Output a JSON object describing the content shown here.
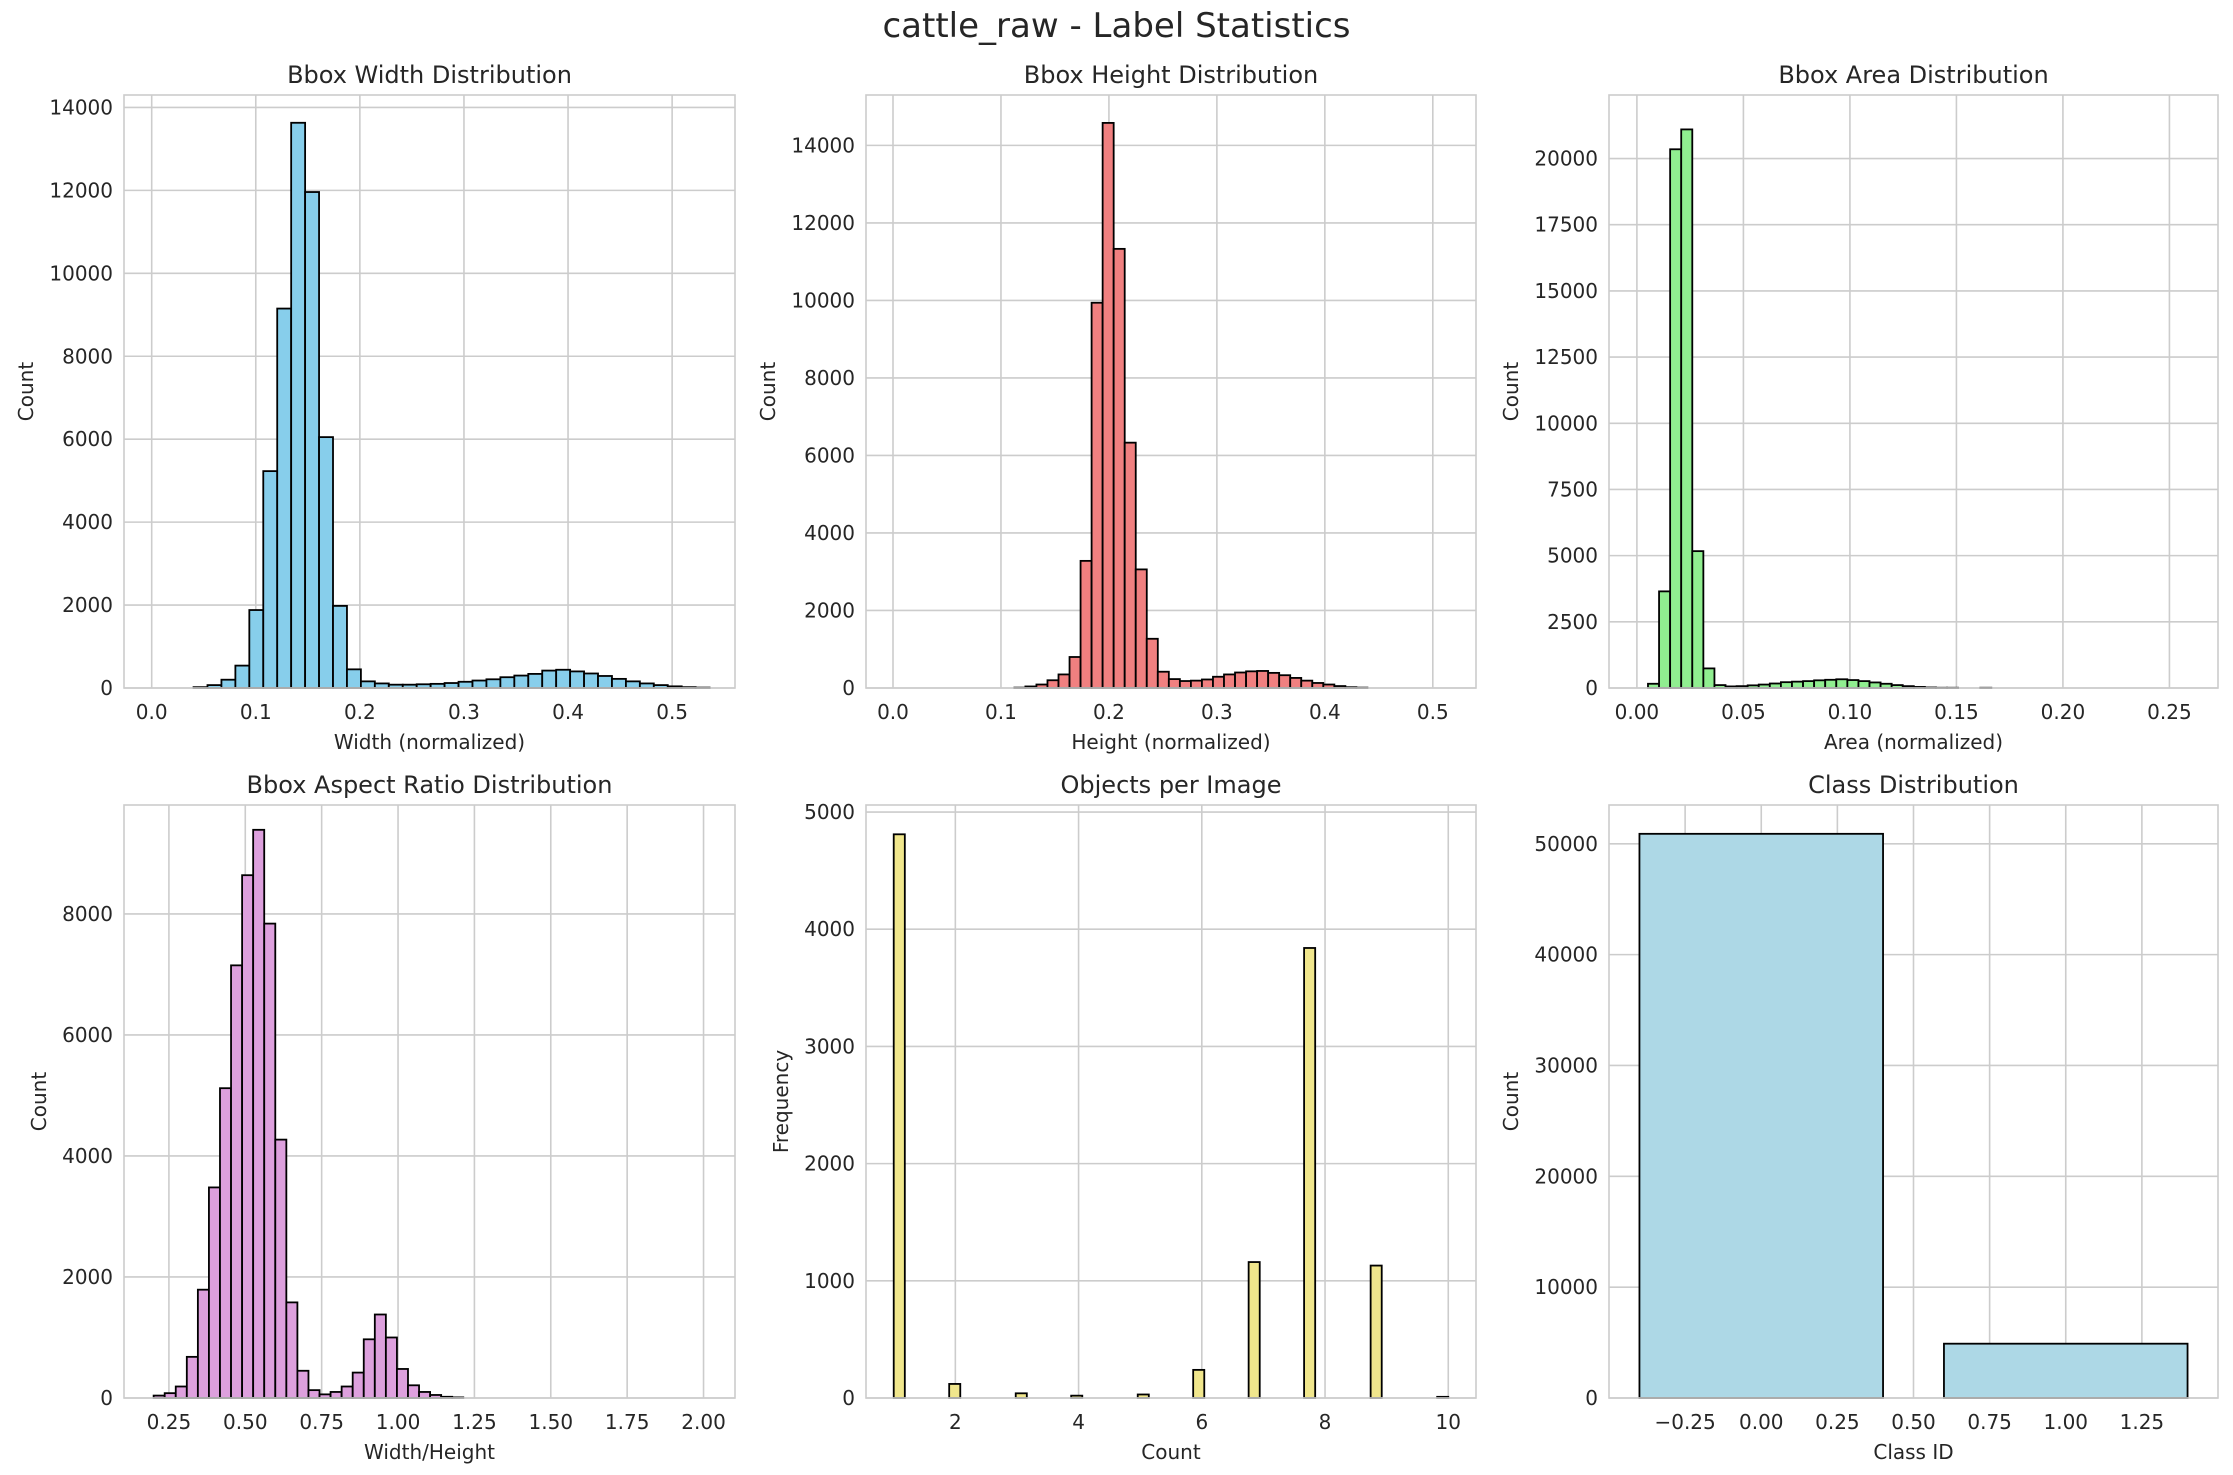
{
  "figure": {
    "title": "cattle_raw - Label Statistics"
  },
  "chart_data": [
    {
      "type": "bar",
      "subtype": "histogram",
      "title": "Bbox Width Distribution",
      "xlabel": "Width (normalized)",
      "ylabel": "Count",
      "color": "#87ceeb",
      "edgecolor": "#000000",
      "xlim": [
        -0.0266,
        0.5604
      ],
      "ylim": [
        0,
        14300
      ],
      "xticks": [
        0.0,
        0.1,
        0.2,
        0.3,
        0.4,
        0.5
      ],
      "xticklabels": [
        "0.0",
        "0.1",
        "0.2",
        "0.3",
        "0.4",
        "0.5"
      ],
      "yticks": [
        0,
        2000,
        4000,
        6000,
        8000,
        10000,
        12000,
        14000
      ],
      "yticklabels": [
        "0",
        "2000",
        "4000",
        "6000",
        "8000",
        "10000",
        "12000",
        "14000"
      ],
      "bin_start": 0.0,
      "bin_width": 0.0134,
      "values": [
        0,
        0,
        0,
        20,
        70,
        200,
        540,
        1880,
        5230,
        9150,
        13630,
        11960,
        6050,
        1980,
        450,
        160,
        110,
        80,
        80,
        90,
        100,
        120,
        150,
        180,
        210,
        260,
        300,
        340,
        420,
        440,
        400,
        350,
        290,
        220,
        160,
        110,
        70,
        40,
        20,
        10
      ]
    },
    {
      "type": "bar",
      "subtype": "histogram",
      "title": "Bbox Height Distribution",
      "xlabel": "Height (normalized)",
      "ylabel": "Count",
      "color": "#f08080",
      "edgecolor": "#000000",
      "xlim": [
        -0.025,
        0.54
      ],
      "ylim": [
        0,
        15300
      ],
      "xticks": [
        0.0,
        0.1,
        0.2,
        0.3,
        0.4,
        0.5
      ],
      "xticklabels": [
        "0.0",
        "0.1",
        "0.2",
        "0.3",
        "0.4",
        "0.5"
      ],
      "yticks": [
        0,
        2000,
        4000,
        6000,
        8000,
        10000,
        12000,
        14000
      ],
      "yticklabels": [
        "0",
        "2000",
        "4000",
        "6000",
        "8000",
        "10000",
        "12000",
        "14000"
      ],
      "bin_start": 0.0,
      "bin_width": 0.01022,
      "values": [
        0,
        0,
        0,
        0,
        0,
        0,
        0,
        0,
        0,
        0,
        0,
        10,
        40,
        90,
        200,
        350,
        800,
        3280,
        9940,
        14580,
        11330,
        6330,
        3060,
        1270,
        420,
        230,
        180,
        190,
        220,
        290,
        350,
        400,
        430,
        440,
        390,
        330,
        260,
        190,
        130,
        90,
        50,
        20,
        10,
        0,
        0,
        0,
        0,
        0,
        0,
        0
      ]
    },
    {
      "type": "bar",
      "subtype": "histogram",
      "title": "Bbox Area Distribution",
      "xlabel": "Area (normalized)",
      "ylabel": "Count",
      "color": "#90ee90",
      "edgecolor": "#000000",
      "xlim": [
        -0.0131,
        0.2728
      ],
      "ylim": [
        0,
        22400
      ],
      "xticks": [
        0.0,
        0.05,
        0.1,
        0.15,
        0.2,
        0.25
      ],
      "xticklabels": [
        "0.00",
        "0.05",
        "0.10",
        "0.15",
        "0.20",
        "0.25"
      ],
      "yticks": [
        0,
        2500,
        5000,
        7500,
        10000,
        12500,
        15000,
        17500,
        20000
      ],
      "yticklabels": [
        "0",
        "2500",
        "5000",
        "7500",
        "10000",
        "12500",
        "15000",
        "17500",
        "20000"
      ],
      "bin_start": 0.0,
      "bin_width": 0.0052,
      "values": [
        0,
        160,
        3650,
        20350,
        21100,
        5170,
        740,
        110,
        60,
        70,
        100,
        130,
        170,
        220,
        240,
        260,
        290,
        310,
        330,
        300,
        260,
        210,
        160,
        110,
        70,
        40,
        20,
        10,
        10,
        0,
        0,
        10,
        0,
        0,
        0,
        0,
        0,
        0,
        0,
        0,
        0,
        0,
        0,
        0,
        0,
        0,
        0,
        0,
        0,
        0
      ]
    },
    {
      "type": "bar",
      "subtype": "histogram",
      "title": "Bbox Aspect Ratio Distribution",
      "xlabel": "Width/Height",
      "ylabel": "Count",
      "color": "#dda0dd",
      "edgecolor": "#000000",
      "xlim": [
        0.103,
        2.103
      ],
      "ylim": [
        0,
        9800
      ],
      "xticks": [
        0.25,
        0.5,
        0.75,
        1.0,
        1.25,
        1.5,
        1.75,
        2.0
      ],
      "xticklabels": [
        "0.25",
        "0.50",
        "0.75",
        "1.00",
        "1.25",
        "1.50",
        "1.75",
        "2.00"
      ],
      "yticks": [
        0,
        2000,
        4000,
        6000,
        8000
      ],
      "yticklabels": [
        "0",
        "2000",
        "4000",
        "6000",
        "8000"
      ],
      "bin_start": 0.2,
      "bin_width": 0.0362,
      "values": [
        40,
        80,
        190,
        680,
        1790,
        3480,
        5120,
        7150,
        8640,
        9390,
        7840,
        4270,
        1580,
        450,
        130,
        60,
        100,
        190,
        420,
        970,
        1380,
        1000,
        480,
        210,
        100,
        50,
        20,
        10,
        0,
        0,
        0,
        0,
        0,
        0,
        0,
        0,
        0,
        0,
        0,
        0,
        0,
        0,
        0,
        0,
        0,
        0,
        0,
        0,
        0,
        0
      ]
    },
    {
      "type": "bar",
      "subtype": "histogram",
      "title": "Objects per Image",
      "xlabel": "Count",
      "ylabel": "Frequency",
      "color": "#f0e68c",
      "edgecolor": "#000000",
      "xlim": [
        0.55,
        10.45
      ],
      "ylim": [
        0,
        5060
      ],
      "xticks": [
        2,
        4,
        6,
        8,
        10
      ],
      "xticklabels": [
        "2",
        "4",
        "6",
        "8",
        "10"
      ],
      "yticks": [
        0,
        1000,
        2000,
        3000,
        4000,
        5000
      ],
      "yticklabels": [
        "0",
        "1000",
        "2000",
        "3000",
        "4000",
        "5000"
      ],
      "bin_start": 1.0,
      "bin_width": 0.18,
      "values": [
        4810,
        0,
        0,
        0,
        0,
        120,
        0,
        0,
        0,
        0,
        0,
        40,
        0,
        0,
        0,
        0,
        20,
        0,
        0,
        0,
        0,
        0,
        30,
        0,
        0,
        0,
        0,
        240,
        0,
        0,
        0,
        0,
        1160,
        0,
        0,
        0,
        0,
        3840,
        0,
        0,
        0,
        0,
        0,
        1130,
        0,
        0,
        0,
        0,
        0,
        10
      ]
    },
    {
      "type": "bar",
      "title": "Class Distribution",
      "xlabel": "Class ID",
      "ylabel": "Count",
      "color": "#add8e6",
      "edgecolor": "#000000",
      "xlim": [
        -0.5,
        1.5
      ],
      "ylim": [
        0,
        53500
      ],
      "xticks": [
        -0.25,
        0.0,
        0.25,
        0.5,
        0.75,
        1.0,
        1.25
      ],
      "xticklabels": [
        "−0.25",
        "0.00",
        "0.25",
        "0.50",
        "0.75",
        "1.00",
        "1.25"
      ],
      "yticks": [
        0,
        10000,
        20000,
        30000,
        40000,
        50000
      ],
      "yticklabels": [
        "0",
        "10000",
        "20000",
        "30000",
        "40000",
        "50000"
      ],
      "categories": [
        0,
        1
      ],
      "bar_width": 0.8,
      "values": [
        50900,
        4900
      ]
    }
  ]
}
